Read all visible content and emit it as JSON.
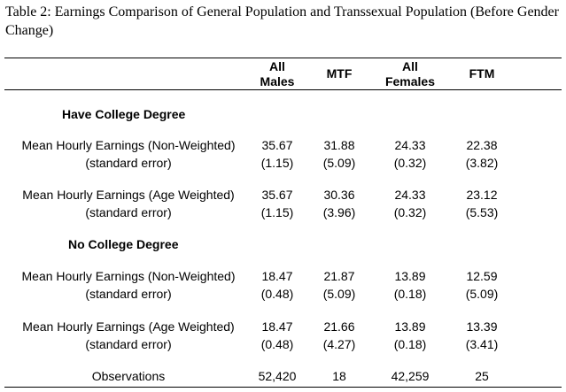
{
  "caption": "Table 2: Earnings Comparison of General Population and Transsexual Population (Before Gender Change)",
  "columns": [
    {
      "line1": "All",
      "line2": "Males"
    },
    {
      "line1": "",
      "line2": "MTF"
    },
    {
      "line1": "All",
      "line2": "Females"
    },
    {
      "line1": "",
      "line2": "FTM"
    }
  ],
  "sections": [
    {
      "title": "Have College Degree",
      "rows": [
        {
          "label": "Mean Hourly Earnings (Non-Weighted)",
          "values": [
            "35.67",
            "31.88",
            "24.33",
            "22.38"
          ],
          "se_label": "(standard error)",
          "se": [
            "(1.15)",
            "(5.09)",
            "(0.32)",
            "(3.82)"
          ]
        },
        {
          "label": "Mean Hourly Earnings (Age Weighted)",
          "values": [
            "35.67",
            "30.36",
            "24.33",
            "23.12"
          ],
          "se_label": "(standard error)",
          "se": [
            "(1.15)",
            "(3.96)",
            "(0.32)",
            "(5.53)"
          ]
        }
      ]
    },
    {
      "title": "No College Degree",
      "rows": [
        {
          "label": "Mean Hourly Earnings (Non-Weighted)",
          "values": [
            "18.47",
            "21.87",
            "13.89",
            "12.59"
          ],
          "se_label": "(standard error)",
          "se": [
            "(0.48)",
            "(5.09)",
            "(0.18)",
            "(5.09)"
          ]
        },
        {
          "label": "Mean Hourly Earnings (Age Weighted)",
          "values": [
            "18.47",
            "21.66",
            "13.89",
            "13.39"
          ],
          "se_label": "(standard error)",
          "se": [
            "(0.48)",
            "(4.27)",
            "(0.18)",
            "(3.41)"
          ]
        }
      ]
    }
  ],
  "observations": {
    "label": "Observations",
    "values": [
      "52,420",
      "18",
      "42,259",
      "25"
    ]
  }
}
